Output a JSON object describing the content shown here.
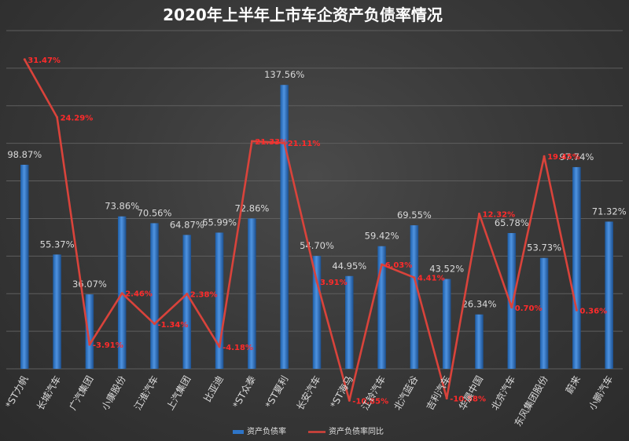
{
  "chart_data": {
    "type": "bar",
    "title": "2020年上半年上市车企资产负债率情况",
    "categories": [
      "*ST力帆",
      "长城汽车",
      "广汽集团",
      "小康股份",
      "江淮汽车",
      "上汽集团",
      "比亚迪",
      "*ST众泰",
      "*ST夏利",
      "长安汽车",
      "*ST海马",
      "江铃汽车",
      "北汽蓝谷",
      "吉利汽车",
      "华晨中国",
      "北京汽车",
      "东风集团股份",
      "蔚来",
      "小鹏汽车"
    ],
    "series": [
      {
        "name": "资产负债率",
        "type": "bar",
        "color": "#2e75c8",
        "values": [
          98.87,
          55.37,
          36.07,
          73.86,
          70.56,
          64.87,
          65.99,
          72.86,
          137.56,
          54.7,
          44.95,
          59.42,
          69.55,
          43.52,
          26.34,
          65.78,
          53.73,
          97.74,
          71.32
        ],
        "labels": [
          "98.87%",
          "55.37%",
          "36.07%",
          "73.86%",
          "70.56%",
          "64.87%",
          "65.99%",
          "72.86%",
          "137.56%",
          "54.70%",
          "44.95%",
          "59.42%",
          "69.55%",
          "43.52%",
          "26.34%",
          "65.78%",
          "53.73%",
          "97.74%",
          "71.32%"
        ]
      },
      {
        "name": "资产负债率同比",
        "type": "line",
        "color": "#d9433b",
        "values": [
          31.47,
          24.29,
          -3.91,
          2.46,
          -1.34,
          2.38,
          -4.18,
          21.33,
          21.11,
          3.91,
          -10.85,
          6.03,
          4.41,
          -10.58,
          12.32,
          0.7,
          19.45,
          0.36,
          null
        ],
        "labels": [
          "31.47%",
          "24.29%",
          "-3.91%",
          "2.46%",
          "-1.34%",
          "2.38%",
          "-4.18%",
          "21.33%",
          "21.11%",
          "3.91%",
          "-10.85%",
          "6.03%",
          "4.41%",
          "-10.58%",
          "12.32%",
          "0.70%",
          "19.45%",
          "0.36%",
          ""
        ]
      }
    ],
    "legend_position": "bottom",
    "grid": true,
    "gridline_count": 9
  }
}
